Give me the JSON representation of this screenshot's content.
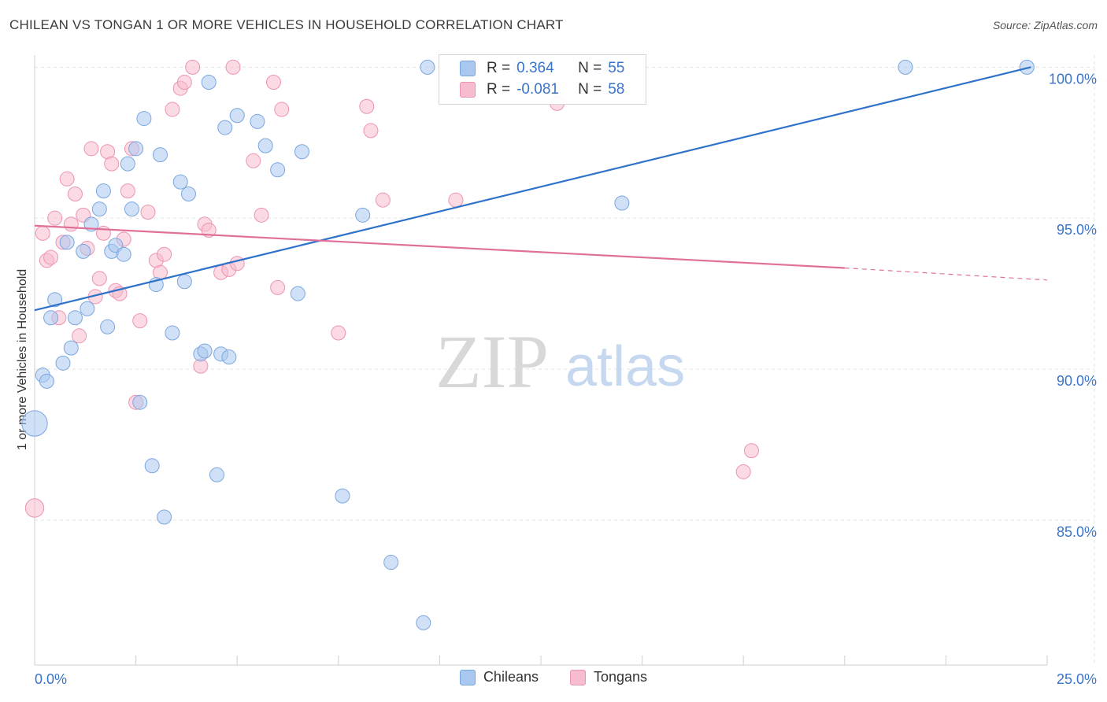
{
  "title": "CHILEAN VS TONGAN 1 OR MORE VEHICLES IN HOUSEHOLD CORRELATION CHART",
  "source": "Source: ZipAtlas.com",
  "watermark": {
    "zip": "ZIP",
    "atlas": "atlas"
  },
  "colors": {
    "chileans_fill": "#a9c8f0",
    "chileans_stroke": "#7aa6df",
    "chileans_line": "#2f72c9",
    "tongans_fill": "#f7bccd",
    "tongans_stroke": "#ec94b1",
    "tongans_line": "#e0709a",
    "axis_text": "#3a74c8",
    "grid": "#e3e3e3"
  },
  "stats": [
    {
      "series": "Chileans",
      "r_label": "R =",
      "r_value": "0.364",
      "n_label": "N =",
      "n_value": "55"
    },
    {
      "series": "Tongans",
      "r_label": "R =",
      "r_value": "-0.081",
      "n_label": "N =",
      "n_value": "58"
    }
  ],
  "legend": [
    "Chileans",
    "Tongans"
  ],
  "chart_data": {
    "type": "scatter",
    "title": "CHILEAN VS TONGAN 1 OR MORE VEHICLES IN HOUSEHOLD CORRELATION CHART",
    "xlabel": "",
    "ylabel": "1 or more Vehicles in Household",
    "xlim": [
      0,
      25
    ],
    "ylim": [
      80.2,
      100.4
    ],
    "x_tick_labels": [
      "0.0%",
      "25.0%"
    ],
    "y_ticks": [
      85,
      90,
      95,
      100
    ],
    "y_tick_labels": [
      "85.0%",
      "90.0%",
      "95.0%",
      "100.0%"
    ],
    "grid": true,
    "series": [
      {
        "name": "Chileans",
        "trend": {
          "x": [
            0,
            24.6
          ],
          "y": [
            91.95,
            100.0
          ],
          "dashed_from": null
        },
        "points": [
          [
            0.0,
            88.2,
            1.8
          ],
          [
            0.2,
            89.8,
            1
          ],
          [
            0.3,
            89.6,
            1
          ],
          [
            0.4,
            91.7,
            1
          ],
          [
            0.5,
            92.3,
            1
          ],
          [
            0.7,
            90.2,
            1
          ],
          [
            0.8,
            94.2,
            1
          ],
          [
            0.9,
            90.7,
            1
          ],
          [
            1.0,
            91.7,
            1
          ],
          [
            1.2,
            93.9,
            1
          ],
          [
            1.3,
            92.0,
            1
          ],
          [
            1.4,
            94.8,
            1
          ],
          [
            1.6,
            95.3,
            1
          ],
          [
            1.7,
            95.9,
            1
          ],
          [
            1.8,
            91.4,
            1
          ],
          [
            1.9,
            93.9,
            1
          ],
          [
            2.0,
            94.1,
            1
          ],
          [
            2.2,
            93.8,
            1
          ],
          [
            2.3,
            96.8,
            1
          ],
          [
            2.4,
            95.3,
            1
          ],
          [
            2.5,
            97.3,
            1
          ],
          [
            2.6,
            88.9,
            1
          ],
          [
            2.7,
            98.3,
            1
          ],
          [
            2.9,
            86.8,
            1
          ],
          [
            3.0,
            92.8,
            1
          ],
          [
            3.1,
            97.1,
            1
          ],
          [
            3.2,
            85.1,
            1
          ],
          [
            3.4,
            91.2,
            1
          ],
          [
            3.6,
            96.2,
            1
          ],
          [
            3.7,
            92.9,
            1
          ],
          [
            3.8,
            95.8,
            1
          ],
          [
            4.1,
            90.5,
            1
          ],
          [
            4.2,
            90.6,
            1
          ],
          [
            4.3,
            99.5,
            1
          ],
          [
            4.5,
            86.5,
            1
          ],
          [
            4.6,
            90.5,
            1
          ],
          [
            4.7,
            98.0,
            1
          ],
          [
            4.8,
            90.4,
            1
          ],
          [
            5.0,
            98.4,
            1
          ],
          [
            5.5,
            98.2,
            1
          ],
          [
            5.7,
            97.4,
            1
          ],
          [
            6.0,
            96.6,
            1
          ],
          [
            6.5,
            92.5,
            1
          ],
          [
            6.6,
            97.2,
            1
          ],
          [
            7.6,
            85.8,
            1
          ],
          [
            8.1,
            95.1,
            1
          ],
          [
            8.8,
            83.6,
            1
          ],
          [
            9.6,
            81.6,
            1
          ],
          [
            9.7,
            100.0,
            1
          ],
          [
            12.0,
            100.0,
            1
          ],
          [
            14.0,
            100.0,
            1
          ],
          [
            14.5,
            95.5,
            1
          ],
          [
            21.5,
            100.0,
            1
          ],
          [
            24.5,
            100.0,
            1
          ]
        ]
      },
      {
        "name": "Tongans",
        "trend": {
          "x": [
            0,
            20.0
          ],
          "y": [
            94.75,
            93.35
          ],
          "dashed_to_x": 25.0,
          "dashed_to_y": 92.95
        },
        "points": [
          [
            0.0,
            85.4,
            1.3
          ],
          [
            0.2,
            94.5,
            1
          ],
          [
            0.3,
            93.6,
            1
          ],
          [
            0.4,
            93.7,
            1
          ],
          [
            0.5,
            95.0,
            1
          ],
          [
            0.6,
            91.7,
            1
          ],
          [
            0.7,
            94.2,
            1
          ],
          [
            0.8,
            96.3,
            1
          ],
          [
            0.9,
            94.8,
            1
          ],
          [
            1.0,
            95.8,
            1
          ],
          [
            1.1,
            91.1,
            1
          ],
          [
            1.2,
            95.1,
            1
          ],
          [
            1.3,
            94.0,
            1
          ],
          [
            1.4,
            97.3,
            1
          ],
          [
            1.5,
            92.4,
            1
          ],
          [
            1.6,
            93.0,
            1
          ],
          [
            1.7,
            94.5,
            1
          ],
          [
            1.8,
            97.2,
            1
          ],
          [
            1.9,
            96.8,
            1
          ],
          [
            2.0,
            92.6,
            1
          ],
          [
            2.1,
            92.5,
            1
          ],
          [
            2.2,
            94.3,
            1
          ],
          [
            2.3,
            95.9,
            1
          ],
          [
            2.4,
            97.3,
            1
          ],
          [
            2.5,
            88.9,
            1
          ],
          [
            2.6,
            91.6,
            1
          ],
          [
            2.8,
            95.2,
            1
          ],
          [
            3.0,
            93.6,
            1
          ],
          [
            3.1,
            93.2,
            1
          ],
          [
            3.2,
            93.8,
            1
          ],
          [
            3.4,
            98.6,
            1
          ],
          [
            3.6,
            99.3,
            1
          ],
          [
            3.7,
            99.5,
            1
          ],
          [
            3.9,
            100.0,
            1
          ],
          [
            4.1,
            90.1,
            1
          ],
          [
            4.2,
            94.8,
            1
          ],
          [
            4.3,
            94.6,
            1
          ],
          [
            4.6,
            93.2,
            1
          ],
          [
            4.8,
            93.3,
            1
          ],
          [
            4.9,
            100.0,
            1
          ],
          [
            5.0,
            93.5,
            1
          ],
          [
            5.4,
            96.9,
            1
          ],
          [
            5.6,
            95.1,
            1
          ],
          [
            5.9,
            99.5,
            1
          ],
          [
            6.0,
            92.7,
            1
          ],
          [
            6.1,
            98.6,
            1
          ],
          [
            7.5,
            91.2,
            1
          ],
          [
            8.2,
            98.7,
            1
          ],
          [
            8.3,
            97.9,
            1
          ],
          [
            8.6,
            95.6,
            1
          ],
          [
            10.4,
            95.6,
            1
          ],
          [
            12.9,
            98.8,
            1
          ],
          [
            17.5,
            86.6,
            1
          ],
          [
            17.7,
            87.3,
            1
          ]
        ]
      }
    ]
  }
}
